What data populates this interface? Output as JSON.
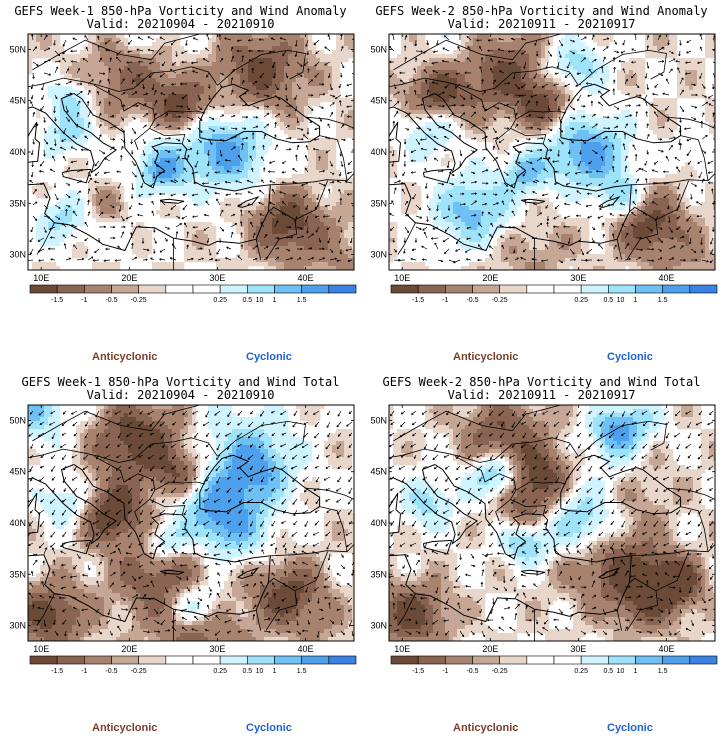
{
  "panels": [
    {
      "title": "GEFS Week-1 850-hPa Vorticity and Wind Anomaly",
      "valid": "Valid: 20210904 - 20210910",
      "seed": 11
    },
    {
      "title": "GEFS Week-2 850-hPa Vorticity and Wind Anomaly",
      "valid": "Valid: 20210911 - 20210917",
      "seed": 29
    },
    {
      "title": "GEFS Week-1 850-hPa Vorticity and Wind Total",
      "valid": "Valid: 20210904 - 20210910",
      "seed": 47
    },
    {
      "title": "GEFS Week-2 850-hPa Vorticity and Wind Total",
      "valid": "Valid: 20210911 - 20210917",
      "seed": 83
    }
  ],
  "map": {
    "lat_labels": [
      "50N",
      "45N",
      "40N",
      "35N",
      "30N"
    ],
    "lon_labels": [
      "10E",
      "20E",
      "30E",
      "40E"
    ]
  },
  "colorbar": {
    "labels": [
      "-1.5",
      "-1",
      "-0.5",
      "-0.25",
      "0.25",
      "0.5",
      "1",
      "1.5"
    ],
    "unit_label": "10",
    "colors": [
      "#6b4a38",
      "#8a6452",
      "#a7836f",
      "#c6a796",
      "#e9d6cb",
      "#ffffff",
      "#ffffff",
      "#cff4ff",
      "#9fe3fb",
      "#6fc0f4",
      "#4ea0ec",
      "#3a82e4"
    ]
  },
  "legend": {
    "anticyclonic": "Anticyclonic",
    "cyclonic": "Cyclonic",
    "anticyclonic_color": "#7b3f2b",
    "cyclonic_color": "#1f62d6"
  }
}
